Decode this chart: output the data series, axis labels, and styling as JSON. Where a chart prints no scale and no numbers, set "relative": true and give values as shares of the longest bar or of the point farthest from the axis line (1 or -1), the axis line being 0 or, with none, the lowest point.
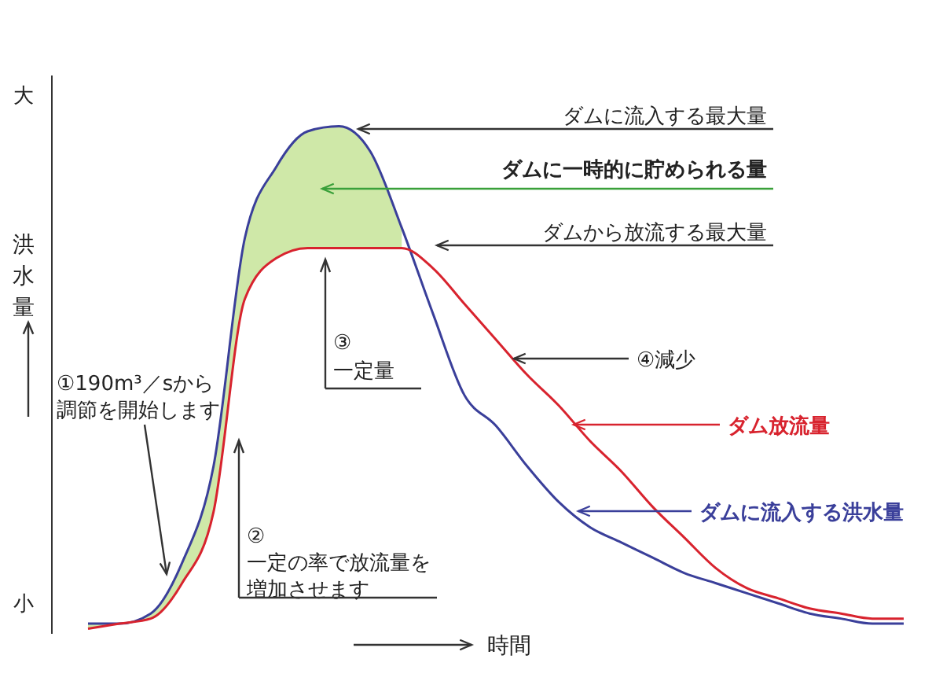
{
  "chart_data": {
    "type": "line",
    "relative": true,
    "ylabel": "洪水量",
    "xlabel": "時間",
    "categories": [
      null,
      null,
      null,
      null,
      null,
      null,
      null,
      null,
      null,
      null,
      null,
      null,
      null,
      null,
      null,
      null,
      null,
      null,
      null,
      null,
      null,
      null,
      null,
      null,
      null,
      null,
      null
    ],
    "series": [
      {
        "name": "ダムに流入する洪水量",
        "color": "#3a3f9a",
        "values": [
          0.02,
          0.02,
          0.04,
          0.14,
          0.33,
          0.78,
          0.92,
          0.99,
          1,
          0.95,
          0.8,
          0.63,
          0.47,
          0.41,
          0.33,
          0.26,
          0.21,
          0.18,
          0.15,
          0.12,
          0.1,
          0.08,
          0.06,
          0.04,
          0.03,
          0.02,
          0.02
        ],
        "lower": [
          0.01,
          0.02,
          0.03,
          0.1,
          0.24,
          0.66,
          0.74,
          0.76,
          0.76,
          0.76,
          0.76,
          null,
          null,
          null,
          null,
          null,
          null,
          null,
          null,
          null,
          null,
          null,
          null,
          null,
          null,
          null,
          null
        ],
        "upper": [
          0.02,
          0.02,
          0.04,
          0.14,
          0.33,
          0.78,
          0.92,
          0.99,
          1,
          0.95,
          0.8,
          null,
          null,
          null,
          null,
          null,
          null,
          null,
          null,
          null,
          null,
          null,
          null,
          null,
          null,
          null,
          null
        ]
      },
      {
        "name": "ダム放流量",
        "color": "#d8232e",
        "values": [
          0.01,
          0.02,
          0.03,
          0.1,
          0.24,
          0.66,
          0.74,
          0.76,
          0.76,
          0.76,
          0.76,
          0.72,
          0.65,
          0.58,
          0.51,
          0.45,
          0.38,
          0.32,
          0.25,
          0.19,
          0.13,
          0.09,
          0.07,
          0.05,
          0.04,
          0.03,
          0.03
        ]
      }
    ],
    "annotations": [
      "大",
      "小",
      "ダムに流入する最大量",
      "ダムから放流する最大量",
      "①190m³／sから調節を開始します",
      "②一定の率で放流量を増加させます",
      "③一定量",
      "④減少",
      "ダムに一時的に貯められる量"
    ],
    "grid": false,
    "legend": false
  }
}
